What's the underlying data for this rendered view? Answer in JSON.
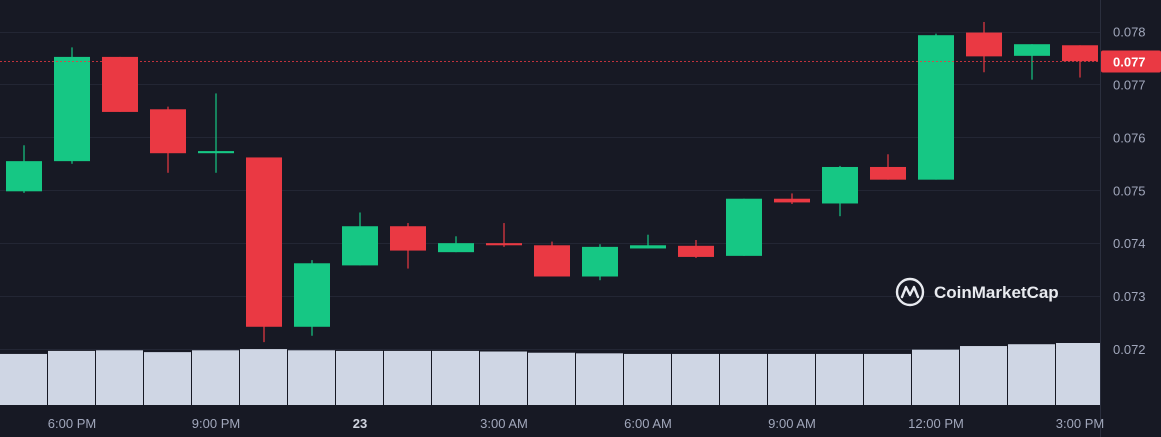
{
  "watermark": {
    "brand": "CoinMarketCap"
  },
  "colors": {
    "background": "#171924",
    "grid": "#232634",
    "up": "#16c784",
    "down": "#ea3943",
    "volume": "#cfd6e4",
    "axis_text": "#a1a7bb",
    "price_tag": "#ea3943"
  },
  "chart_data": {
    "type": "candlestick",
    "title": "",
    "xlabel": "",
    "ylabel": "",
    "ylim": [
      0.0712,
      0.0781
    ],
    "grid": true,
    "y_ticks": [
      "0.078",
      "0.077",
      "0.076",
      "0.075",
      "0.074",
      "0.073",
      "0.072"
    ],
    "y_tick_values": [
      0.078,
      0.077,
      0.076,
      0.075,
      0.074,
      0.073,
      0.072
    ],
    "x_ticks": [
      "6:00 PM",
      "9:00 PM",
      "23",
      "3:00 AM",
      "6:00 AM",
      "9:00 AM",
      "12:00 PM",
      "3:00 PM"
    ],
    "current_price": {
      "label": "0.077",
      "value": 0.07744
    },
    "candles": [
      {
        "time": "5:00 PM",
        "open": 0.07498,
        "high": 0.07585,
        "low": 0.07495,
        "close": 0.07555
      },
      {
        "time": "6:00 PM",
        "open": 0.07555,
        "high": 0.0777,
        "low": 0.0755,
        "close": 0.07752
      },
      {
        "time": "7:00 PM",
        "open": 0.07752,
        "high": 0.07752,
        "low": 0.07648,
        "close": 0.07648
      },
      {
        "time": "8:00 PM",
        "open": 0.07653,
        "high": 0.07658,
        "low": 0.07533,
        "close": 0.0757
      },
      {
        "time": "9:00 PM",
        "open": 0.0757,
        "high": 0.07683,
        "low": 0.07533,
        "close": 0.07574
      },
      {
        "time": "10:00 PM",
        "open": 0.07562,
        "high": 0.07562,
        "low": 0.07213,
        "close": 0.07242
      },
      {
        "time": "11:00 PM",
        "open": 0.07242,
        "high": 0.07368,
        "low": 0.07225,
        "close": 0.07362
      },
      {
        "time": "12:00 AM",
        "open": 0.07358,
        "high": 0.07458,
        "low": 0.07358,
        "close": 0.07432
      },
      {
        "time": "1:00 AM",
        "open": 0.07432,
        "high": 0.07438,
        "low": 0.07352,
        "close": 0.07386
      },
      {
        "time": "2:00 AM",
        "open": 0.07383,
        "high": 0.07413,
        "low": 0.07383,
        "close": 0.074
      },
      {
        "time": "3:00 AM",
        "open": 0.074,
        "high": 0.07438,
        "low": 0.07393,
        "close": 0.07396
      },
      {
        "time": "4:00 AM",
        "open": 0.07396,
        "high": 0.07403,
        "low": 0.07337,
        "close": 0.07337
      },
      {
        "time": "5:00 AM",
        "open": 0.07337,
        "high": 0.07398,
        "low": 0.0733,
        "close": 0.07393
      },
      {
        "time": "6:00 AM",
        "open": 0.0739,
        "high": 0.07416,
        "low": 0.0739,
        "close": 0.07396
      },
      {
        "time": "7:00 AM",
        "open": 0.07395,
        "high": 0.07406,
        "low": 0.07372,
        "close": 0.07374
      },
      {
        "time": "8:00 AM",
        "open": 0.07376,
        "high": 0.07484,
        "low": 0.07376,
        "close": 0.07484
      },
      {
        "time": "9:00 AM",
        "open": 0.07484,
        "high": 0.07494,
        "low": 0.07474,
        "close": 0.07477
      },
      {
        "time": "10:00 AM",
        "open": 0.07475,
        "high": 0.07546,
        "low": 0.07451,
        "close": 0.07544
      },
      {
        "time": "11:00 AM",
        "open": 0.07544,
        "high": 0.07568,
        "low": 0.0752,
        "close": 0.0752
      },
      {
        "time": "12:00 PM",
        "open": 0.0752,
        "high": 0.07796,
        "low": 0.0752,
        "close": 0.07793
      },
      {
        "time": "1:00 PM",
        "open": 0.07798,
        "high": 0.07818,
        "low": 0.07723,
        "close": 0.07753
      },
      {
        "time": "2:00 PM",
        "open": 0.07754,
        "high": 0.07776,
        "low": 0.07709,
        "close": 0.07776
      },
      {
        "time": "3:00 PM",
        "open": 0.07774,
        "high": 0.07774,
        "low": 0.07713,
        "close": 0.07744
      }
    ],
    "volume_levels": [
      0.84,
      0.89,
      0.9,
      0.87,
      0.9,
      0.92,
      0.9,
      0.89,
      0.89,
      0.89,
      0.88,
      0.86,
      0.85,
      0.84,
      0.84,
      0.84,
      0.84,
      0.84,
      0.84,
      0.91,
      0.97,
      1.0,
      1.02
    ]
  }
}
